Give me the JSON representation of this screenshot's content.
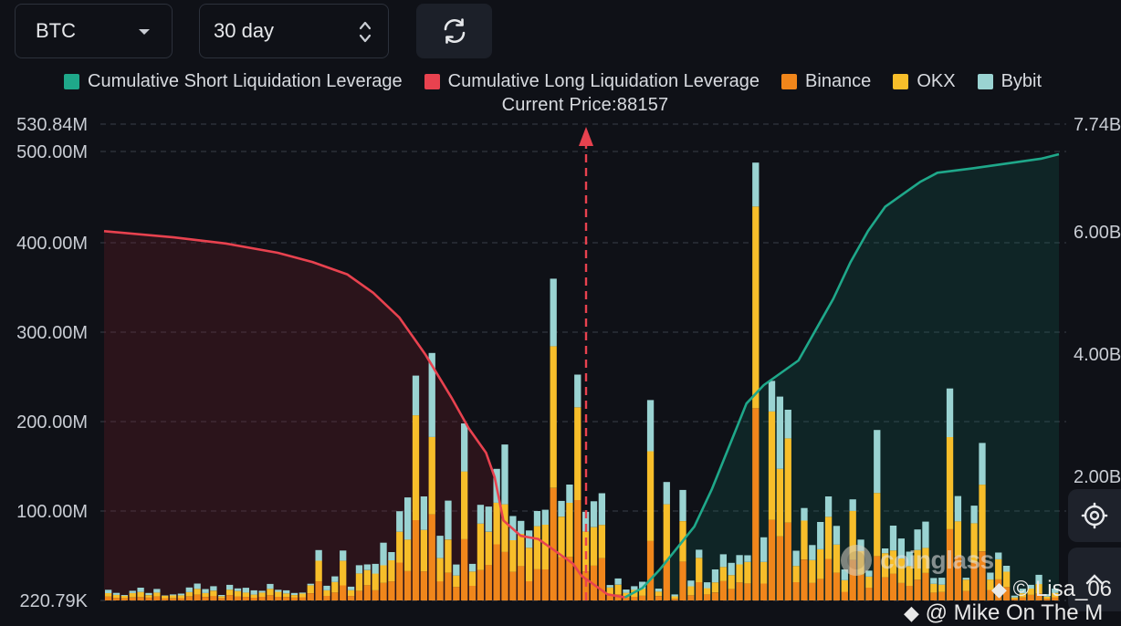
{
  "controls": {
    "asset_select": "BTC",
    "range_select": "30 day"
  },
  "legend": [
    {
      "label": "Cumulative Short Liquidation Leverage",
      "color": "#1fa88a"
    },
    {
      "label": "Cumulative Long Liquidation Leverage",
      "color": "#e8424f"
    },
    {
      "label": "Binance",
      "color": "#f0861b"
    },
    {
      "label": "OKX",
      "color": "#f7be2a"
    },
    {
      "label": "Bybit",
      "color": "#9ad3d2"
    }
  ],
  "current_price_label": "Current Price:88157",
  "watermark": "coinglass",
  "credits": [
    "© Lisa_06",
    "@ Mike On The M"
  ],
  "chart_data": {
    "type": "bar",
    "current_price": 88157,
    "left_axis": {
      "ticks": [
        "530.84M",
        "500.00M",
        "400.00M",
        "300.00M",
        "200.00M",
        "100.00M",
        "220.79K"
      ]
    },
    "right_axis": {
      "ticks": [
        "7.74B",
        "6.00B",
        "4.00B",
        "2.00B"
      ]
    },
    "series": [
      {
        "name": "Cumulative Long Liquidation Leverage",
        "type": "area-line",
        "color": "#e8424f",
        "points": [
          [
            0,
            6.0
          ],
          [
            8,
            5.9
          ],
          [
            14,
            5.8
          ],
          [
            20,
            5.65
          ],
          [
            24,
            5.5
          ],
          [
            28,
            5.3
          ],
          [
            31,
            5.0
          ],
          [
            34,
            4.6
          ],
          [
            37,
            4.0
          ],
          [
            40,
            3.3
          ],
          [
            42,
            2.8
          ],
          [
            44,
            2.4
          ],
          [
            45,
            2.0
          ],
          [
            46,
            1.3
          ],
          [
            48,
            1.05
          ],
          [
            50,
            1.0
          ],
          [
            52,
            0.8
          ],
          [
            54,
            0.6
          ],
          [
            55,
            0.4
          ],
          [
            57,
            0.2
          ],
          [
            58,
            0.1
          ],
          [
            60,
            0.05
          ]
        ]
      },
      {
        "name": "Cumulative Short Liquidation Leverage",
        "type": "area-line",
        "color": "#1fa88a",
        "points": [
          [
            60,
            0.05
          ],
          [
            62,
            0.2
          ],
          [
            64,
            0.5
          ],
          [
            66,
            0.85
          ],
          [
            68,
            1.2
          ],
          [
            70,
            1.8
          ],
          [
            72,
            2.5
          ],
          [
            74,
            3.2
          ],
          [
            76,
            3.5
          ],
          [
            78,
            3.7
          ],
          [
            80,
            3.9
          ],
          [
            82,
            4.4
          ],
          [
            84,
            4.9
          ],
          [
            86,
            5.5
          ],
          [
            88,
            6.0
          ],
          [
            90,
            6.4
          ],
          [
            92,
            6.6
          ],
          [
            94,
            6.8
          ],
          [
            96,
            6.95
          ],
          [
            100,
            7.02
          ],
          [
            104,
            7.1
          ],
          [
            108,
            7.18
          ],
          [
            110,
            7.25
          ]
        ]
      }
    ],
    "bars_note": "Stacked bars per price level: Binance, OKX, Bybit (values in M)"
  }
}
